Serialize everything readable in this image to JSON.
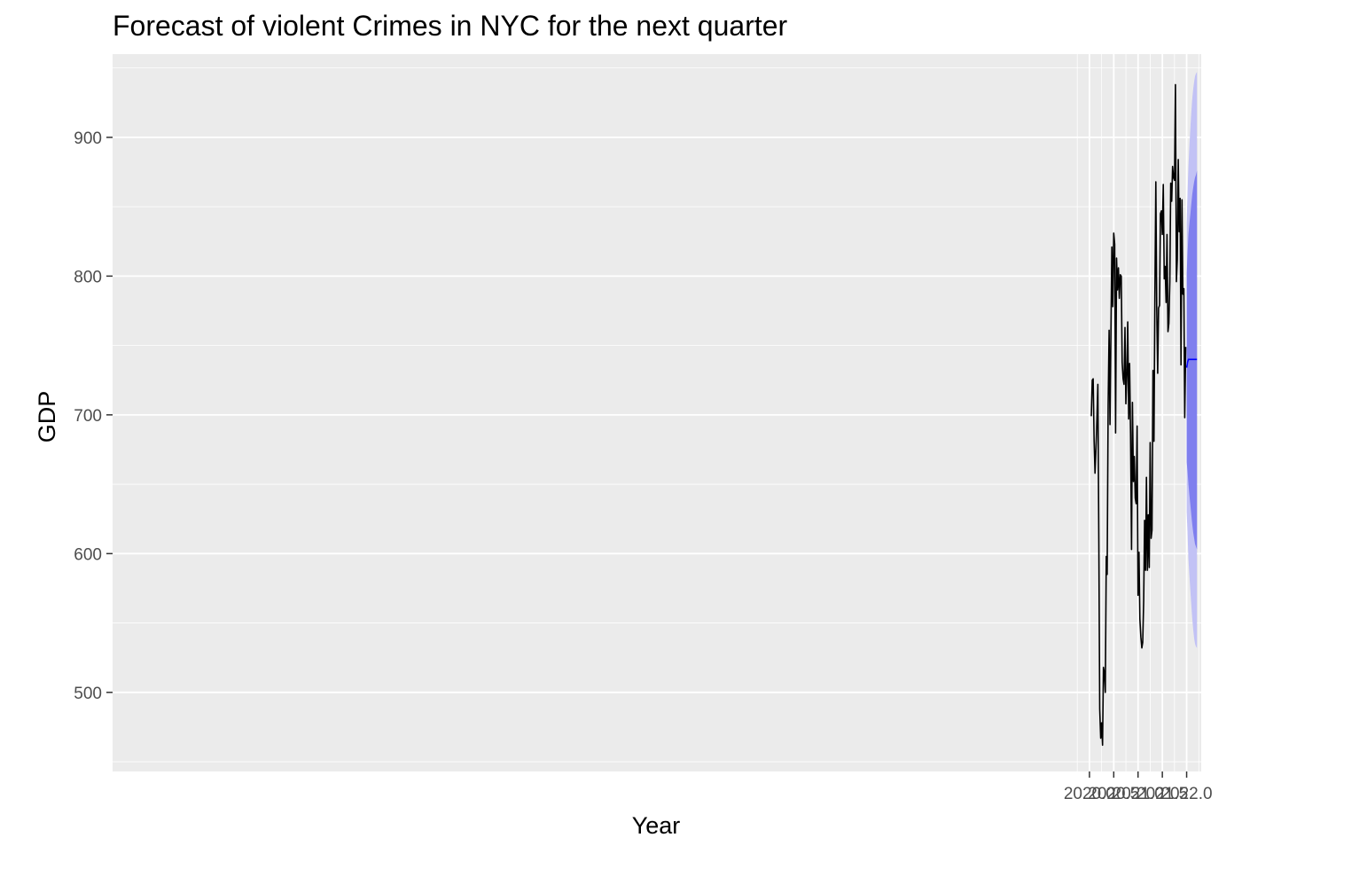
{
  "chart_data": {
    "type": "line",
    "title": "Forecast of violent Crimes in NYC for the next quarter",
    "xlabel": "Year",
    "ylabel": "GDP",
    "xlim": [
      1999.9,
      2022.3
    ],
    "ylim": [
      443,
      960
    ],
    "x_ticks": [
      2020.0,
      2020.5,
      2021.0,
      2021.5,
      2022.0
    ],
    "x_tick_labels": [
      "2020.0",
      "2020.5",
      "2021.0",
      "2021.5",
      "2022.0"
    ],
    "y_ticks": [
      500,
      600,
      700,
      800,
      900
    ],
    "y_tick_labels": [
      "500",
      "600",
      "700",
      "800",
      "900"
    ],
    "grid": true,
    "colors": {
      "panel": "#ebebeb",
      "grid": "#ffffff",
      "series": "#000000",
      "forecast": "#0000ff",
      "band80": "#7f7fee",
      "band95": "#c2c2f5"
    },
    "series": [
      {
        "x_start": 2020.0385,
        "x_step": 0.019231,
        "values": [
          699,
          725,
          726,
          681,
          658,
          676,
          696,
          722,
          609,
          488,
          467,
          478,
          462,
          518,
          514,
          500,
          598,
          585,
          707,
          761,
          693,
          762,
          821,
          778,
          831,
          823,
          687,
          813,
          790,
          806,
          784,
          801,
          800,
          738,
          726,
          722,
          763,
          708,
          729,
          767,
          697,
          737,
          686,
          603,
          709,
          652,
          670,
          640,
          636,
          692,
          570,
          601,
          553,
          540,
          532,
          536,
          566,
          624,
          588,
          655,
          588,
          628,
          590,
          680,
          611,
          617,
          732,
          681,
          783,
          868,
          778,
          730,
          777,
          779,
          845,
          847,
          830,
          866,
          798,
          807,
          781,
          830,
          760,
          766,
          796,
          867,
          854,
          879,
          871,
          869,
          938,
          796,
          812,
          884,
          832,
          856,
          736,
          855,
          787,
          791,
          698,
          749
        ]
      }
    ],
    "forecast": {
      "x": [
        2022.0,
        2022.019,
        2022.038,
        2022.058,
        2022.077,
        2022.096,
        2022.115,
        2022.135,
        2022.154,
        2022.173,
        2022.192,
        2022.212
      ],
      "mean": [
        734,
        738,
        740,
        740,
        740,
        740,
        740,
        740,
        740,
        740,
        740,
        740
      ],
      "lo80": [
        666,
        659,
        650,
        642,
        635,
        628,
        621,
        615,
        611,
        607,
        605,
        603
      ],
      "hi80": [
        802,
        817,
        830,
        838,
        845,
        852,
        859,
        864,
        868,
        871,
        873,
        876
      ],
      "lo95": [
        630,
        614,
        596,
        584,
        573,
        563,
        553,
        545,
        539,
        535,
        533,
        532
      ],
      "hi95": [
        838,
        861,
        879,
        894,
        907,
        918,
        928,
        935,
        940,
        944,
        946,
        947
      ]
    }
  }
}
